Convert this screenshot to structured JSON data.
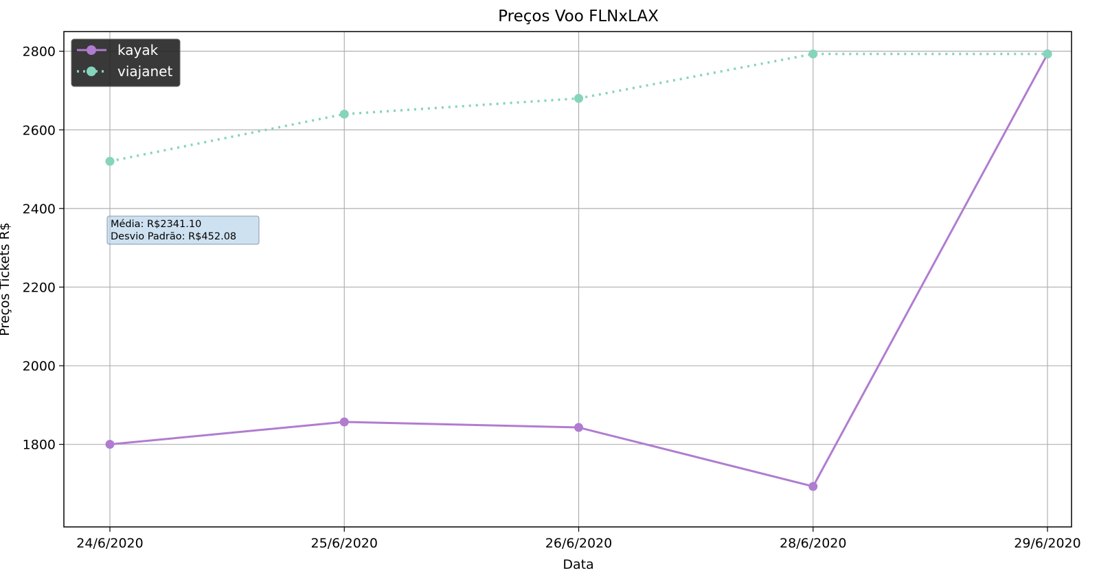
{
  "chart_data": {
    "type": "line",
    "title": "Preços Voo FLNxLAX",
    "xlabel": "Data",
    "ylabel": "Preços Tickets R$",
    "categories": [
      "24/6/2020",
      "25/6/2020",
      "26/6/2020",
      "28/6/2020",
      "29/6/2020"
    ],
    "yticks": [
      1800,
      2000,
      2200,
      2400,
      2600,
      2800
    ],
    "ylim": [
      1590,
      2850
    ],
    "grid": true,
    "legend_position": "top-left",
    "series": [
      {
        "name": "kayak",
        "values": [
          1800,
          1857,
          1843,
          1693,
          2793
        ],
        "color": "#b07cd0",
        "line_style": "solid"
      },
      {
        "name": "viajanet",
        "values": [
          2520,
          2640,
          2680,
          2793,
          2793
        ],
        "color": "#85d4bc",
        "line_style": "dotted"
      }
    ],
    "annotation": {
      "lines": [
        "Média: R$2341.10",
        "Desvio Padrão: R$452.08"
      ]
    }
  }
}
